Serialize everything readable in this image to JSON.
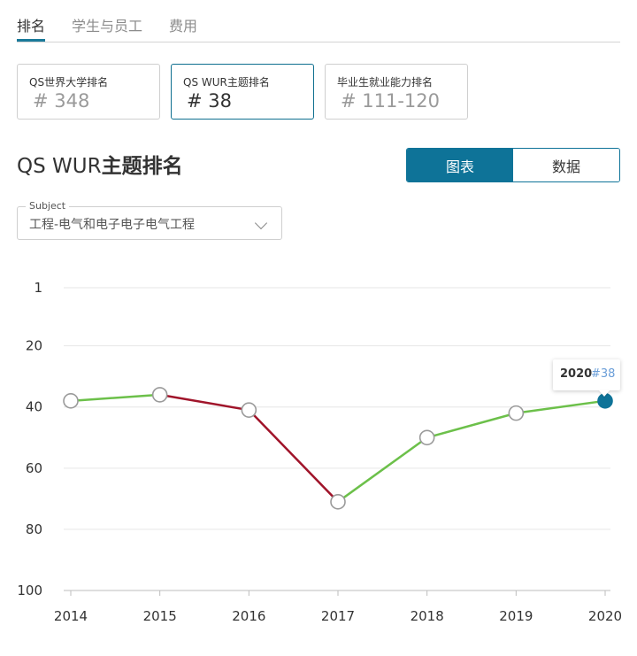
{
  "tabs": [
    {
      "label": "排名",
      "active": true
    },
    {
      "label": "学生与员工",
      "active": false
    },
    {
      "label": "费用",
      "active": false
    }
  ],
  "ranking_cards": [
    {
      "label": "QS世界大学排名",
      "value": "# 348",
      "selected": false
    },
    {
      "label": "QS WUR主题排名",
      "value": "# 38",
      "selected": true
    },
    {
      "label": "毕业生就业能力排名",
      "value": "# 111-120",
      "selected": false
    }
  ],
  "section": {
    "title_prefix": "QS WUR",
    "title_main": "主题排名"
  },
  "view_toggle": {
    "chart_label": "图表",
    "data_label": "数据",
    "active": "chart"
  },
  "subject": {
    "legend": "Subject",
    "value": "工程-电气和电子电子电气工程"
  },
  "tooltip": {
    "year": "2020",
    "rank": "#38"
  },
  "colors": {
    "accent": "#0e7398",
    "rise": "#6cc04a",
    "fall": "#a0142a",
    "grid": "#e6e6e6"
  },
  "chart_data": {
    "type": "line",
    "x": [
      "2014",
      "2015",
      "2016",
      "2017",
      "2018",
      "2019",
      "2020"
    ],
    "values": [
      38,
      36,
      41,
      71,
      50,
      42,
      38
    ],
    "ylim": [
      1,
      100
    ],
    "y_inverted": true,
    "yticks": [
      1,
      20,
      40,
      60,
      80,
      100
    ],
    "grid": true,
    "highlight_index": 6
  }
}
